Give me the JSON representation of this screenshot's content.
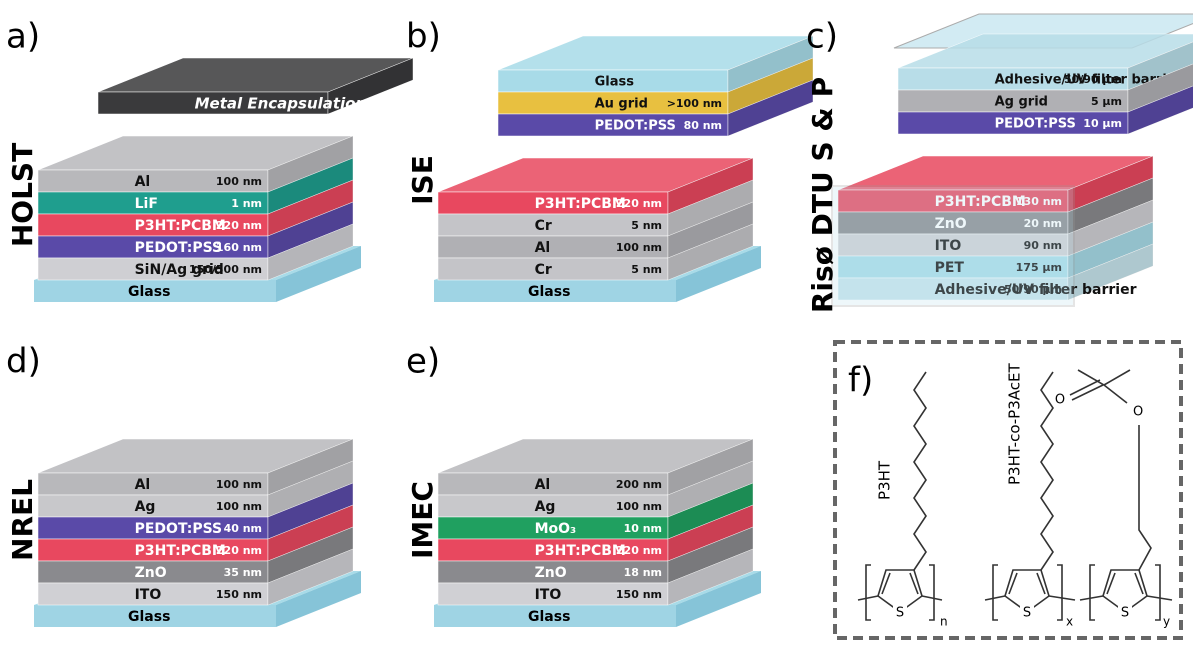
{
  "panels": [
    {
      "label": "a)",
      "name": "HOLST",
      "top": [
        {
          "name": "Metal Encapsulation",
          "color": "#3a3a3c"
        }
      ],
      "layers": [
        {
          "name": "Al",
          "thickness": "100 nm",
          "color": "#b8b8bb"
        },
        {
          "name": "LiF",
          "thickness": "1 nm",
          "color": "#1f9e8e"
        },
        {
          "name": "P3HT:PCBM",
          "thickness": "220 nm",
          "color": "#e8485f"
        },
        {
          "name": "PEDOT:PSS",
          "thickness": "160 nm",
          "color": "#5a4aa8"
        },
        {
          "name": "SiN/Ag grid",
          "thickness": "150/500 nm",
          "color": "#cfcfd3"
        }
      ],
      "substrate": "Glass"
    },
    {
      "label": "b)",
      "name": "ISE",
      "top": [
        {
          "name": "Glass",
          "color": "#a8dbe8"
        },
        {
          "name": "Au grid",
          "thickness": ">100 nm",
          "color": "#e8c040"
        },
        {
          "name": "PEDOT:PSS",
          "thickness": "80 nm",
          "color": "#5a4aa8"
        }
      ],
      "layers": [
        {
          "name": "P3HT:PCBM",
          "thickness": "220 nm",
          "color": "#e8485f"
        },
        {
          "name": "Cr",
          "thickness": "5 nm",
          "color": "#c4c4c8"
        },
        {
          "name": "Al",
          "thickness": "100 nm",
          "color": "#b0b0b4"
        },
        {
          "name": "Cr",
          "thickness": "5 nm",
          "color": "#c4c4c8"
        }
      ],
      "substrate": "Glass"
    },
    {
      "label": "c)",
      "name": "Risø DTU S & P",
      "top": [
        {
          "name": "Adhesive/UV filter barrier",
          "thickness": "50/90 µm",
          "color": "#b8dde8"
        },
        {
          "name": "Ag grid",
          "thickness": "5 µm",
          "color": "#b0b0b4"
        },
        {
          "name": "PEDOT:PSS",
          "thickness": "10 µm",
          "color": "#5a4aa8"
        }
      ],
      "layers": [
        {
          "name": "P3HT:PCBM",
          "thickness": "130 nm",
          "color": "#e8485f"
        },
        {
          "name": "ZnO",
          "thickness": "20 nm",
          "color": "#8a8a8e"
        },
        {
          "name": "ITO",
          "thickness": "90 nm",
          "color": "#d0d0d4"
        },
        {
          "name": "PET",
          "thickness": "175 µm",
          "color": "#a8dbe8"
        },
        {
          "name": "Adhesive/UV filter barrier",
          "thickness": "50/90 µm",
          "color": "#c6e4ec"
        }
      ]
    },
    {
      "label": "d)",
      "name": "NREL",
      "layers": [
        {
          "name": "Al",
          "thickness": "100 nm",
          "color": "#b8b8bb"
        },
        {
          "name": "Ag",
          "thickness": "100 nm",
          "color": "#c8c8cb"
        },
        {
          "name": "PEDOT:PSS",
          "thickness": "40 nm",
          "color": "#5a4aa8"
        },
        {
          "name": "P3HT:PCBM",
          "thickness": "220 nm",
          "color": "#e8485f"
        },
        {
          "name": "ZnO",
          "thickness": "35 nm",
          "color": "#8a8a8e"
        },
        {
          "name": "ITO",
          "thickness": "150 nm",
          "color": "#d0d0d4"
        }
      ],
      "substrate": "Glass"
    },
    {
      "label": "e)",
      "name": "IMEC",
      "layers": [
        {
          "name": "Al",
          "thickness": "200 nm",
          "color": "#b8b8bb"
        },
        {
          "name": "Ag",
          "thickness": "100 nm",
          "color": "#c8c8cb"
        },
        {
          "name": "MoO₃",
          "thickness": "10 nm",
          "color": "#20a060"
        },
        {
          "name": "P3HT:PCBM",
          "thickness": "220 nm",
          "color": "#e8485f"
        },
        {
          "name": "ZnO",
          "thickness": "18 nm",
          "color": "#8a8a8e"
        },
        {
          "name": "ITO",
          "thickness": "150 nm",
          "color": "#d0d0d4"
        }
      ],
      "substrate": "Glass"
    }
  ],
  "structure": {
    "label": "f)",
    "polymer_1": "P3HT",
    "polymer_2": "P3HT-co-P3AcET",
    "subscripts": [
      "n",
      "x",
      "y"
    ],
    "atoms": [
      "S",
      "S",
      "S",
      "O",
      "O"
    ]
  }
}
